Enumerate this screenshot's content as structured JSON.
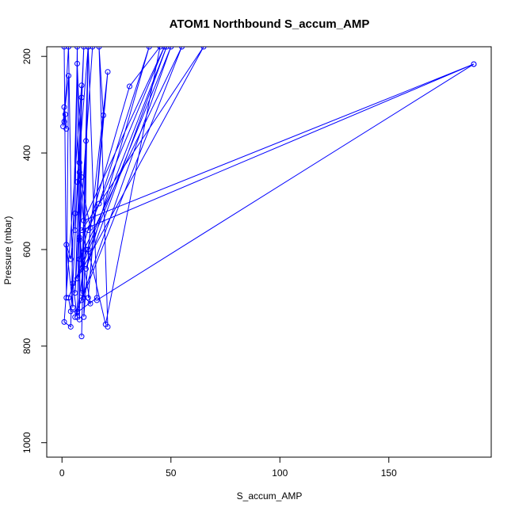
{
  "chart_data": {
    "type": "scatter",
    "title": "ATOM1 Northbound S_accum_AMP",
    "xlabel": "S_accum_AMP",
    "ylabel": "Pressure (mbar)",
    "xlim": [
      -7,
      197
    ],
    "ylim": [
      1030,
      180
    ],
    "y_reversed": true,
    "x_ticks": [
      0,
      50,
      100,
      150
    ],
    "y_ticks": [
      200,
      400,
      600,
      800,
      1000
    ],
    "grid": false,
    "legend": "none",
    "color": "#0000ff",
    "series": [
      {
        "points": [
          {
            "x": 1,
            "y": 180
          },
          {
            "x": 2,
            "y": 700
          },
          {
            "x": 3,
            "y": 240
          },
          {
            "x": 0.5,
            "y": 345
          },
          {
            "x": 1,
            "y": 305
          },
          {
            "x": 1.5,
            "y": 320
          },
          {
            "x": 2,
            "y": 350
          },
          {
            "x": 1,
            "y": 335
          },
          {
            "x": 3,
            "y": 180
          },
          {
            "x": 5,
            "y": 720
          },
          {
            "x": 2,
            "y": 590
          },
          {
            "x": 4,
            "y": 620
          },
          {
            "x": 6,
            "y": 525
          },
          {
            "x": 7,
            "y": 180
          },
          {
            "x": 8,
            "y": 745
          },
          {
            "x": 9,
            "y": 260
          },
          {
            "x": 1,
            "y": 750
          },
          {
            "x": 4,
            "y": 760
          },
          {
            "x": 7,
            "y": 215
          },
          {
            "x": 9,
            "y": 450
          },
          {
            "x": 6,
            "y": 690
          },
          {
            "x": 8,
            "y": 420
          },
          {
            "x": 10,
            "y": 180
          },
          {
            "x": 5,
            "y": 670
          },
          {
            "x": 7,
            "y": 740
          },
          {
            "x": 9,
            "y": 285
          },
          {
            "x": 6,
            "y": 560
          }
        ]
      },
      {
        "points": [
          {
            "x": 12,
            "y": 180
          },
          {
            "x": 9,
            "y": 780
          },
          {
            "x": 11,
            "y": 375
          },
          {
            "x": 8,
            "y": 575
          },
          {
            "x": 10,
            "y": 700
          },
          {
            "x": 7,
            "y": 460
          },
          {
            "x": 12,
            "y": 180
          },
          {
            "x": 10,
            "y": 740
          },
          {
            "x": 13,
            "y": 555
          },
          {
            "x": 8,
            "y": 440
          },
          {
            "x": 11,
            "y": 600
          },
          {
            "x": 7,
            "y": 730
          },
          {
            "x": 16,
            "y": 700
          },
          {
            "x": 12,
            "y": 180
          },
          {
            "x": 9,
            "y": 690
          },
          {
            "x": 13,
            "y": 712
          },
          {
            "x": 8,
            "y": 580
          },
          {
            "x": 14,
            "y": 180
          }
        ]
      },
      {
        "points": [
          {
            "x": 21,
            "y": 760
          },
          {
            "x": 17,
            "y": 180
          },
          {
            "x": 19,
            "y": 322
          },
          {
            "x": 12,
            "y": 700
          },
          {
            "x": 21,
            "y": 232
          },
          {
            "x": 12,
            "y": 600
          },
          {
            "x": 20,
            "y": 755
          },
          {
            "x": 45,
            "y": 180
          },
          {
            "x": 31,
            "y": 262
          },
          {
            "x": 8,
            "y": 620
          },
          {
            "x": 55,
            "y": 180
          },
          {
            "x": 9,
            "y": 705
          }
        ]
      },
      {
        "points": [
          {
            "x": 6,
            "y": 740
          },
          {
            "x": 50,
            "y": 180
          },
          {
            "x": 7,
            "y": 660
          },
          {
            "x": 65,
            "y": 180
          },
          {
            "x": 9,
            "y": 560
          },
          {
            "x": 189,
            "y": 216
          },
          {
            "x": 16,
            "y": 705
          },
          {
            "x": 189,
            "y": 216
          },
          {
            "x": 10,
            "y": 540
          },
          {
            "x": 47,
            "y": 180
          },
          {
            "x": 12,
            "y": 560
          },
          {
            "x": 17,
            "y": 505
          },
          {
            "x": 40,
            "y": 180
          },
          {
            "x": 11,
            "y": 640
          },
          {
            "x": 48,
            "y": 180
          },
          {
            "x": 3,
            "y": 700
          },
          {
            "x": 4,
            "y": 728
          },
          {
            "x": 7,
            "y": 728
          }
        ]
      }
    ]
  }
}
